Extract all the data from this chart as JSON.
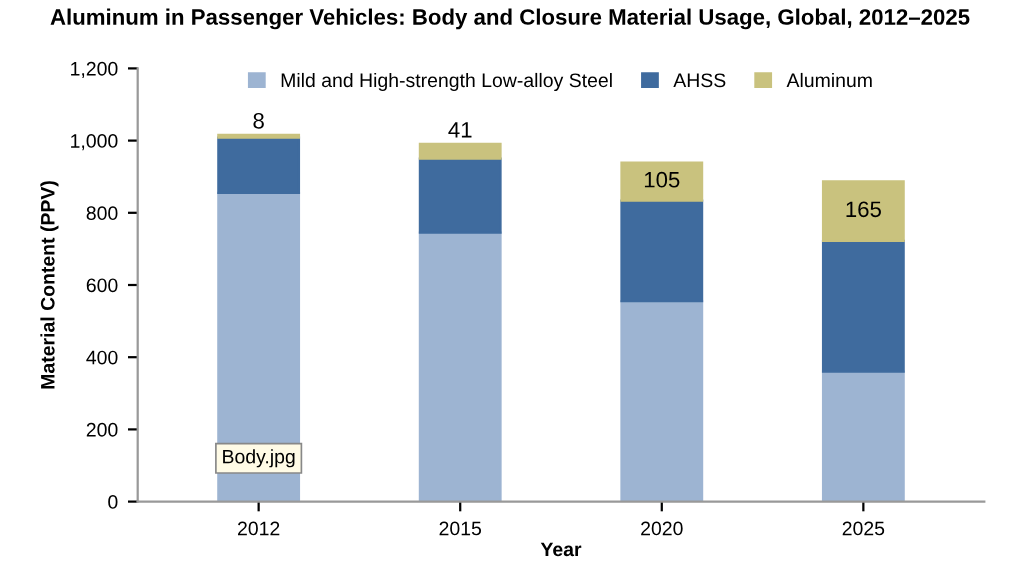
{
  "chart_data": {
    "type": "bar",
    "stacked": true,
    "title": "Aluminum in Passenger Vehicles: Body and Closure Material Usage, Global, 2012–2025",
    "xlabel": "Year",
    "ylabel": "Material Content (PPV)",
    "categories": [
      "2012",
      "2015",
      "2020",
      "2025"
    ],
    "series": [
      {
        "name": "Mild and High-strength Low-alloy Steel",
        "color": "#9db4d2",
        "values": [
          855,
          745,
          555,
          360
        ]
      },
      {
        "name": "AHSS",
        "color": "#3f6b9e",
        "values": [
          153,
          205,
          279,
          362
        ]
      },
      {
        "name": "Aluminum",
        "color": "#c9c27e",
        "values": [
          8,
          41,
          105,
          165
        ],
        "value_labels": [
          "8",
          "41",
          "105",
          "165"
        ]
      }
    ],
    "ylim": [
      0,
      1200
    ],
    "yticks": [
      0,
      200,
      400,
      600,
      800,
      {
        "value": 1000,
        "label": "1,000"
      },
      {
        "value": 1200,
        "label": "1,200"
      }
    ],
    "grid": false,
    "legend": "top",
    "annotations": [
      {
        "text": "Body.jpg",
        "x": "2012",
        "y": 120
      }
    ]
  }
}
